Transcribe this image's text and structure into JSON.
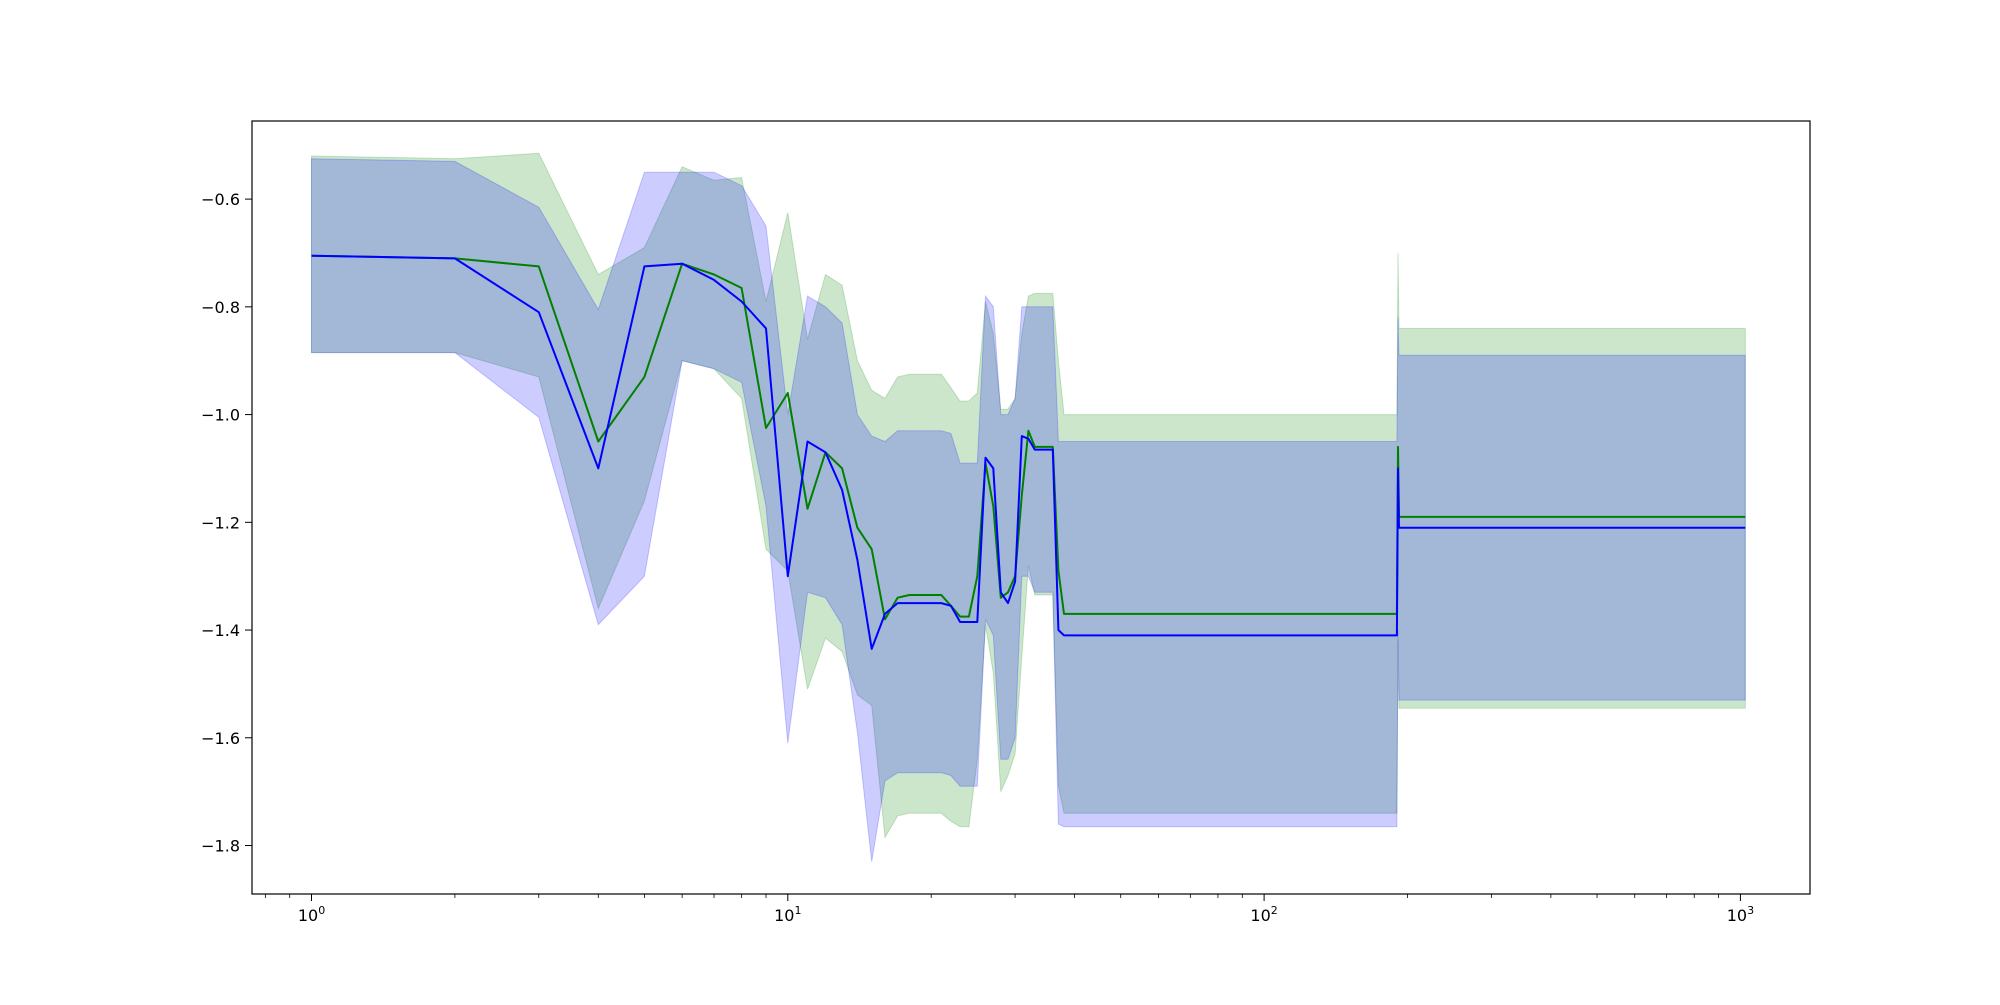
{
  "chart_data": {
    "type": "line",
    "title": "",
    "xlabel": "",
    "ylabel": "",
    "x_scale": "log",
    "xlim": [
      0.75,
      1400
    ],
    "ylim": [
      -1.89,
      -0.455
    ],
    "grid": false,
    "x_ticks": [
      {
        "value": 1,
        "base": "10",
        "exp": "0"
      },
      {
        "value": 10,
        "base": "10",
        "exp": "1"
      },
      {
        "value": 100,
        "base": "10",
        "exp": "2"
      },
      {
        "value": 1000,
        "base": "10",
        "exp": "3"
      }
    ],
    "y_ticks": [
      {
        "value": -0.6,
        "label": "−0.6"
      },
      {
        "value": -0.8,
        "label": "−0.8"
      },
      {
        "value": -1.0,
        "label": "−1.0"
      },
      {
        "value": -1.2,
        "label": "−1.2"
      },
      {
        "value": -1.4,
        "label": "−1.4"
      },
      {
        "value": -1.6,
        "label": "−1.6"
      },
      {
        "value": -1.8,
        "label": "−1.8"
      }
    ],
    "series": [
      {
        "color": "#008000",
        "band_color": "#008000",
        "band_opacity": 0.2,
        "x": [
          1,
          2,
          3,
          4,
          5,
          6,
          7,
          8,
          9,
          10,
          11,
          12,
          13,
          14,
          15,
          16,
          17,
          18,
          19,
          20,
          21,
          22,
          23,
          24,
          25,
          26,
          27,
          28,
          29,
          30,
          31,
          32,
          33,
          34,
          35,
          36,
          37,
          38,
          39,
          190,
          191,
          192,
          193,
          1024
        ],
        "values": [
          -0.705,
          -0.71,
          -0.725,
          -1.05,
          -0.93,
          -0.72,
          -0.74,
          -0.765,
          -1.025,
          -0.96,
          -1.175,
          -1.07,
          -1.1,
          -1.21,
          -1.25,
          -1.38,
          -1.34,
          -1.335,
          -1.335,
          -1.335,
          -1.335,
          -1.355,
          -1.375,
          -1.375,
          -1.3,
          -1.09,
          -1.17,
          -1.34,
          -1.33,
          -1.3,
          -1.15,
          -1.03,
          -1.06,
          -1.06,
          -1.06,
          -1.06,
          -1.29,
          -1.37,
          -1.37,
          -1.37,
          -1.06,
          -1.19,
          -1.19,
          -1.19
        ],
        "upper": [
          -0.52,
          -0.525,
          -0.515,
          -0.74,
          -0.69,
          -0.54,
          -0.565,
          -0.56,
          -0.79,
          -0.625,
          -0.86,
          -0.74,
          -0.76,
          -0.9,
          -0.955,
          -0.97,
          -0.93,
          -0.925,
          -0.925,
          -0.925,
          -0.925,
          -0.95,
          -0.975,
          -0.975,
          -0.96,
          -0.79,
          -0.85,
          -0.99,
          -0.99,
          -0.97,
          -0.85,
          -0.78,
          -0.775,
          -0.775,
          -0.775,
          -0.775,
          -0.9,
          -1.0,
          -1.0,
          -1.0,
          -0.7,
          -0.84,
          -0.84,
          -0.84
        ],
        "lower": [
          -0.885,
          -0.885,
          -0.93,
          -1.36,
          -1.16,
          -0.9,
          -0.915,
          -0.97,
          -1.25,
          -1.29,
          -1.51,
          -1.415,
          -1.44,
          -1.52,
          -1.54,
          -1.785,
          -1.745,
          -1.74,
          -1.74,
          -1.74,
          -1.74,
          -1.755,
          -1.765,
          -1.765,
          -1.64,
          -1.39,
          -1.48,
          -1.7,
          -1.67,
          -1.63,
          -1.45,
          -1.28,
          -1.335,
          -1.335,
          -1.335,
          -1.335,
          -1.69,
          -1.74,
          -1.74,
          -1.74,
          -1.42,
          -1.545,
          -1.545,
          -1.545
        ]
      },
      {
        "color": "#0000ff",
        "band_color": "#0000ff",
        "band_opacity": 0.2,
        "x": [
          1,
          2,
          3,
          4,
          5,
          6,
          7,
          8,
          9,
          10,
          11,
          12,
          13,
          14,
          15,
          16,
          17,
          18,
          19,
          20,
          21,
          22,
          23,
          24,
          25,
          26,
          27,
          28,
          29,
          30,
          31,
          32,
          33,
          34,
          35,
          36,
          37,
          38,
          39,
          190,
          191,
          192,
          193,
          1024
        ],
        "values": [
          -0.705,
          -0.71,
          -0.81,
          -1.1,
          -0.725,
          -0.72,
          -0.75,
          -0.79,
          -0.84,
          -1.3,
          -1.05,
          -1.07,
          -1.14,
          -1.27,
          -1.435,
          -1.37,
          -1.35,
          -1.35,
          -1.35,
          -1.35,
          -1.35,
          -1.355,
          -1.385,
          -1.385,
          -1.385,
          -1.08,
          -1.1,
          -1.33,
          -1.35,
          -1.31,
          -1.04,
          -1.045,
          -1.065,
          -1.065,
          -1.065,
          -1.065,
          -1.4,
          -1.41,
          -1.41,
          -1.41,
          -1.1,
          -1.21,
          -1.21,
          -1.21
        ],
        "upper": [
          -0.525,
          -0.53,
          -0.615,
          -0.805,
          -0.55,
          -0.55,
          -0.55,
          -0.575,
          -0.65,
          -1.0,
          -0.78,
          -0.8,
          -0.83,
          -1.0,
          -1.04,
          -1.05,
          -1.03,
          -1.03,
          -1.03,
          -1.03,
          -1.03,
          -1.035,
          -1.09,
          -1.09,
          -1.09,
          -0.78,
          -0.8,
          -1.0,
          -1.0,
          -0.97,
          -0.8,
          -0.8,
          -0.8,
          -0.8,
          -0.8,
          -0.8,
          -1.05,
          -1.05,
          -1.05,
          -1.05,
          -0.82,
          -0.89,
          -0.89,
          -0.89
        ],
        "lower": [
          -0.885,
          -0.885,
          -1.005,
          -1.39,
          -1.3,
          -0.9,
          -0.915,
          -0.94,
          -1.17,
          -1.61,
          -1.33,
          -1.34,
          -1.39,
          -1.59,
          -1.83,
          -1.68,
          -1.665,
          -1.665,
          -1.665,
          -1.665,
          -1.665,
          -1.67,
          -1.69,
          -1.69,
          -1.69,
          -1.38,
          -1.41,
          -1.64,
          -1.64,
          -1.6,
          -1.3,
          -1.3,
          -1.33,
          -1.33,
          -1.33,
          -1.33,
          -1.76,
          -1.765,
          -1.765,
          -1.765,
          -1.4,
          -1.53,
          -1.53,
          -1.53
        ]
      }
    ]
  }
}
